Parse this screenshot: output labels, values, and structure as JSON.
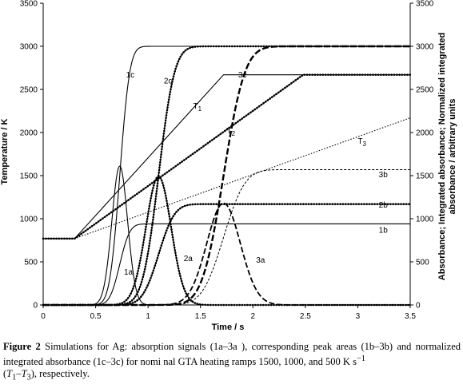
{
  "chart_data": {
    "type": "line",
    "xlabel": "Time / s",
    "ylabel_left": "Temperature / K",
    "ylabel_right": "Absorbance; Integrated absorbance; Normalized integrated absorbance / arbitrary units",
    "xlim": [
      0,
      3.5
    ],
    "ylim": [
      0,
      3500
    ],
    "x_ticks": [
      "0",
      "0.5",
      "1",
      "1.5",
      "2",
      "2.5",
      "3",
      "3.5"
    ],
    "y_ticks": [
      "0",
      "500",
      "1000",
      "1500",
      "2000",
      "2500",
      "3000",
      "3500"
    ],
    "grid": false,
    "series": [
      {
        "name": "T1",
        "label": "T",
        "label_sub": "1",
        "style": "solid",
        "points": [
          [
            0,
            770
          ],
          [
            0.3,
            770
          ],
          [
            1.72,
            2670
          ],
          [
            3.5,
            2670
          ]
        ]
      },
      {
        "name": "T2",
        "label": "T",
        "label_sub": "2",
        "style": "dotted-thick",
        "points": [
          [
            0,
            770
          ],
          [
            0.3,
            770
          ],
          [
            2.48,
            2670
          ],
          [
            3.5,
            2670
          ]
        ]
      },
      {
        "name": "T3",
        "label": "T",
        "label_sub": "3",
        "style": "dotted-thin",
        "points": [
          [
            0,
            770
          ],
          [
            0.3,
            770
          ],
          [
            3.5,
            2170
          ]
        ]
      },
      {
        "name": "1a",
        "label": "1a",
        "style": "solid",
        "peak_x": 0.73,
        "peak_y": 1610,
        "width": 0.075
      },
      {
        "name": "2a",
        "label": "2a",
        "style": "dotted-thick",
        "peak_x": 1.1,
        "peak_y": 1490,
        "width": 0.12
      },
      {
        "name": "3a",
        "label": "3a",
        "style": "dashed",
        "peak_x": 1.72,
        "peak_y": 1180,
        "width": 0.16
      },
      {
        "name": "1b",
        "label": "1b",
        "style": "solid",
        "plateau_y": 940,
        "mid_x": 0.73
      },
      {
        "name": "2b",
        "label": "2b",
        "style": "dotted-thick",
        "plateau_y": 1170,
        "mid_x": 1.1
      },
      {
        "name": "3b",
        "label": "3b",
        "style": "dashed-thin",
        "plateau_y": 1570,
        "mid_x": 1.72
      },
      {
        "name": "1c",
        "label": "1c",
        "style": "solid",
        "plateau_y": 3000,
        "mid_x": 0.73
      },
      {
        "name": "2c",
        "label": "2c",
        "style": "dotted-thick",
        "plateau_y": 3000,
        "mid_x": 1.1
      },
      {
        "name": "3c",
        "label": "3c",
        "style": "dashed-thick",
        "plateau_y": 3000,
        "mid_x": 1.72
      }
    ]
  },
  "caption": {
    "figure_label": "Figure 2",
    "text_1": " Simulations for Ag: absorption signals (1a–3a ), corresponding peak areas (1b–3b) and normalized integrated absorbance (1c–3c) for nomi nal GTA heating ramps 1500, 1000, and 500 K s",
    "superscript": "−1",
    "text_2": " (",
    "t_first": "T",
    "t_first_sub": "1",
    "dash": "–",
    "t_last": "T",
    "t_last_sub": "3",
    "text_3": "), respectively."
  }
}
